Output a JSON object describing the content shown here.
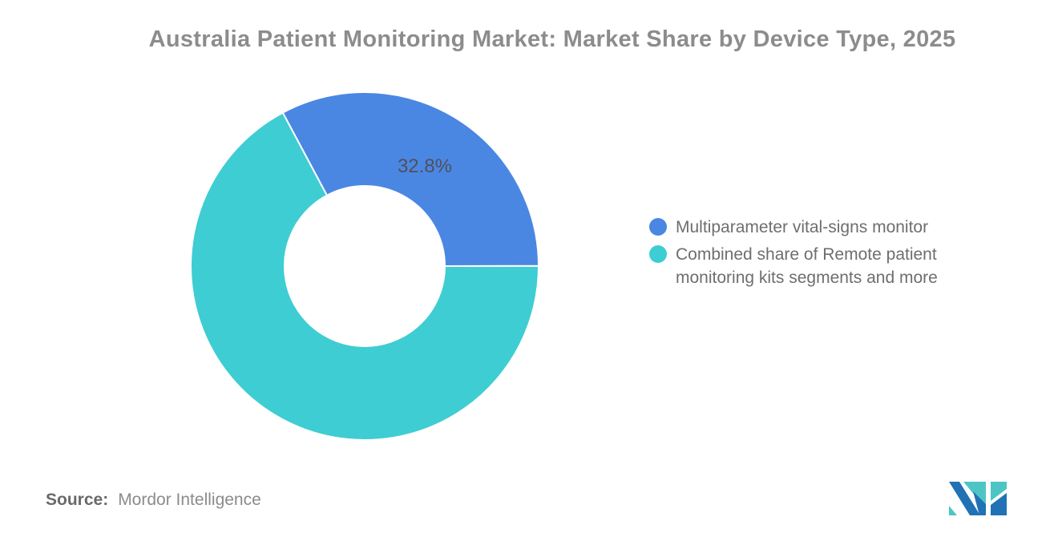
{
  "title": "Australia Patient Monitoring Market: Market Share by Device Type, 2025",
  "chart_data": {
    "type": "pie",
    "donut": true,
    "title": "Australia Patient Monitoring Market: Market Share by Device Type, 2025",
    "start_angle_deg": -28.1,
    "inner_radius_ratio": 0.46,
    "legend_position": "right",
    "segments": [
      {
        "label": "Multiparameter vital-signs monitor",
        "value": 32.8,
        "color": "#4A87E3",
        "data_label": "32.8%"
      },
      {
        "label": "Combined share of Remote patient monitoring kits segments and more",
        "value": 67.2,
        "color": "#3ECDD3",
        "data_label": null
      }
    ]
  },
  "source": {
    "prefix": "Source:",
    "text": "Mordor Intelligence"
  },
  "logo": {
    "name": "mordor-intelligence-logo",
    "teal": "#4EC5C5",
    "blue": "#2171B5"
  }
}
